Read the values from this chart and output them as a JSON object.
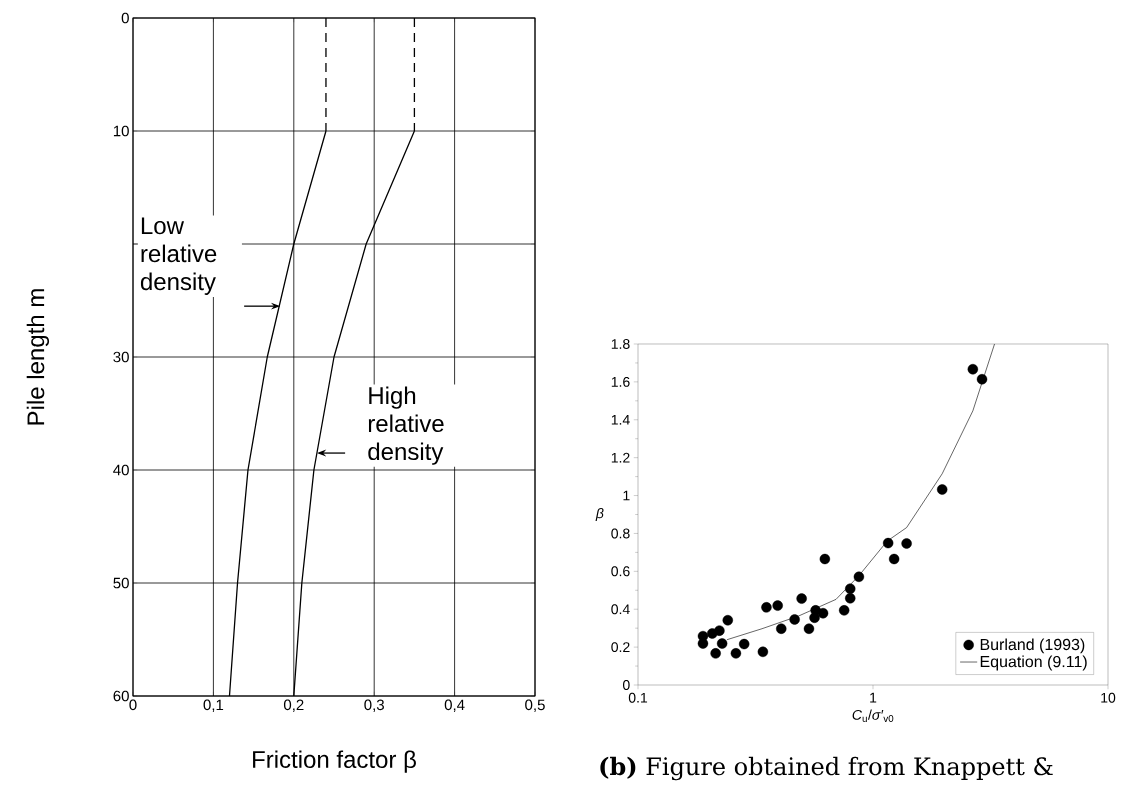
{
  "chart_data": [
    {
      "type": "line",
      "xlabel": "Friction factor β",
      "ylabel": "Pile length m",
      "xlim": [
        0,
        0.5
      ],
      "ylim": [
        60,
        0
      ],
      "xticks": [
        0,
        {
          "value": 0.1,
          "label": "0,1"
        },
        {
          "value": 0.2,
          "label": "0,2"
        },
        {
          "value": 0.3,
          "label": "0,3"
        },
        {
          "value": 0.4,
          "label": "0,4"
        },
        {
          "value": 0.5,
          "label": "0,5"
        }
      ],
      "yticks": [
        0,
        10,
        {
          "value": 20,
          "label": null
        },
        30,
        40,
        50,
        60
      ],
      "grid": true,
      "series": [
        {
          "color": "#000000",
          "line_style": "dashed",
          "x": [
            0.24,
            0.24
          ],
          "values": [
            0,
            10
          ]
        },
        {
          "color": "#000000",
          "line_style": "dashed",
          "x": [
            0.35,
            0.35
          ],
          "values": [
            0,
            10
          ]
        },
        {
          "color": "#000000",
          "line_style": "solid",
          "x": [
            0.24,
            0.2,
            0.167,
            0.143,
            0.13,
            0.12
          ],
          "values": [
            10,
            20,
            30,
            40,
            50,
            60
          ]
        },
        {
          "color": "#000000",
          "line_style": "solid",
          "x": [
            0.35,
            0.29,
            0.25,
            0.225,
            0.21,
            0.2
          ],
          "values": [
            10,
            20,
            30,
            40,
            50,
            60
          ]
        }
      ],
      "annotations": [
        {
          "text": "Low relative density",
          "x": 0.183,
          "y": 25.5
        },
        {
          "text": "High relative density",
          "x": 0.229,
          "y": 38.5
        }
      ]
    },
    {
      "type": "scatter",
      "xlabel": "*C*$_{u}$/*σ′*$_{v0}$",
      "ylabel": "β",
      "log": "x",
      "xlim": [
        0.1,
        10
      ],
      "ylim": [
        0,
        1.8
      ],
      "xticks": [
        0.1,
        1,
        10
      ],
      "yticks": [
        0,
        0.2,
        0.4,
        0.6,
        0.8,
        1,
        1.2,
        1.4,
        1.6,
        1.8
      ],
      "legend": "bottom right",
      "series": [
        {
          "name": "Burland (1993)",
          "type": "scatter",
          "color": "#000000",
          "marker": "circle",
          "x": [
            2.66,
            2.91,
            1.97,
            1.16,
            1.39,
            1.23,
            0.624,
            0.871,
            0.8,
            0.8,
            0.754,
            0.497,
            0.393,
            0.352,
            0.57,
            0.613,
            0.564,
            0.464,
            0.534,
            0.407,
            0.241,
            0.222,
            0.207,
            0.189,
            0.189,
            0.228,
            0.214,
            0.261,
            0.283,
            0.34
          ],
          "values": [
            1.667,
            1.614,
            1.032,
            0.749,
            0.747,
            0.665,
            0.665,
            0.571,
            0.508,
            0.458,
            0.394,
            0.456,
            0.419,
            0.41,
            0.394,
            0.379,
            0.355,
            0.346,
            0.297,
            0.297,
            0.342,
            0.287,
            0.272,
            0.258,
            0.219,
            0.219,
            0.167,
            0.167,
            0.216,
            0.175
          ]
        },
        {
          "name": "Equation (9.11)",
          "type": "line",
          "color": "#000000",
          "marker": "none",
          "x": [
            0.239,
            0.337,
            0.484,
            0.696,
            0.871,
            1.15,
            1.39,
            1.97,
            2.66,
            3.29
          ],
          "values": [
            0.239,
            0.297,
            0.365,
            0.452,
            0.577,
            0.76,
            0.831,
            1.115,
            1.447,
            1.8
          ]
        }
      ],
      "annotations": [
        "**(b)** Figure obtained from Knappett &"
      ]
    }
  ]
}
